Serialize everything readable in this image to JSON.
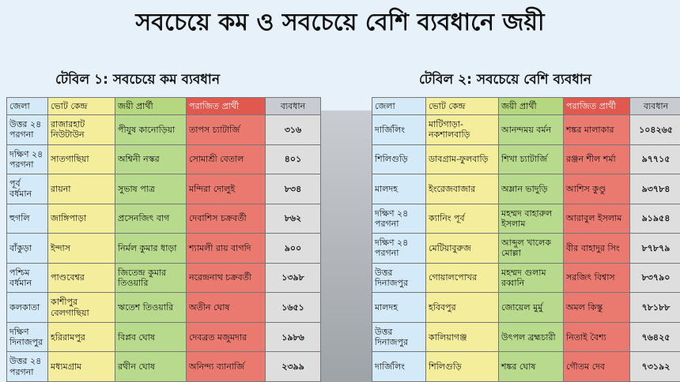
{
  "title": "সবচেয়ে কম ও সবচেয়ে বেশি ব্যবধানে জয়ী",
  "table1": {
    "heading": "টেবিল ১: সবচেয়ে কম ব্যবধান",
    "columns": [
      "জেলা",
      "ভোট কেন্দ্র",
      "জয়ী প্রার্থী",
      "পরাজিত প্রার্থী",
      "ব্যবধান"
    ],
    "rows": [
      [
        "উত্তর ২৪ পরগনা",
        "রাজারহাট নিউটাউন",
        "পীযুষ কানোড়িয়া",
        "তাপস চ্যাটার্জি",
        "৩১৬"
      ],
      [
        "দক্ষিণ ২৪ পরগনা",
        "সাতগাছিয়া",
        "অশ্বিনী নস্কর",
        "সোমাশ্রী বেতাল",
        "৪০১"
      ],
      [
        "পূর্ব বর্ধমান",
        "রায়না",
        "সুভাষ পাত্র",
        "মন্দিরা দোলুই",
        "৮৩৪"
      ],
      [
        "হুগলি",
        "জাঙ্গিপাড়া",
        "প্রসেনজিৎ বাগ",
        "দেবাশিস চক্রবর্তী",
        "৮৬২"
      ],
      [
        "বাঁকুড়া",
        "ইন্দাস",
        "নির্মল কুমার ধাড়া",
        "শ্যামলী রায় বাগদি",
        "৯০০"
      ],
      [
        "পশ্চিম বর্ধমান",
        "পাণ্ডবেশ্বর",
        "জিতেন্দ্র কুমার তিওয়ারি",
        "নরেন্দ্রনাথ চক্রবর্তী",
        "১৩৯৮"
      ],
      [
        "কলকাতা",
        "কাশীপুর বেলগাছিয়া",
        "ঋতেশ তিওয়ারি",
        "অতীন ঘোষ",
        "১৬৫১"
      ],
      [
        "দক্ষিণ দিনাজপুর",
        "হরিরামপুর",
        "বিপ্লব ঘোষ",
        "দেবব্রত মজুমদার",
        "১৯৮৬"
      ],
      [
        "উত্তর ২৪ পরগনা",
        "মধ্যমগ্রাম",
        "রথীন ঘোষ",
        "অনিন্দ্য ব্যানার্জি",
        "২৩৯৯"
      ]
    ]
  },
  "table2": {
    "heading": "টেবিল ২: সবচেয়ে বেশি ব্যবধান",
    "columns": [
      "জেলা",
      "ভোট কেন্দ্র",
      "জয়ী প্রার্থী",
      "পরাজিত প্রার্থী",
      "ব্যবধান"
    ],
    "rows": [
      [
        "দার্জিলিং",
        "মাটিগাড়া-নকশালবাড়ি",
        "আনন্দময় বর্মন",
        "শঙ্কর মালাকার",
        "১০৪২৬৫"
      ],
      [
        "শিলিগুড়ি",
        "ডাবগ্রাম-ফুলবাড়ি",
        "শিখা চ্যাটার্জি",
        "রঞ্জন শীল শর্মা",
        "৯৭৭১৫"
      ],
      [
        "মালদহ",
        "ইংরেজবাজার",
        "অম্লান ভাদুড়ি",
        "আশিস কুণ্ডু",
        "৯৩৭৮৪"
      ],
      [
        "দক্ষিণ ২৪ পরগনা",
        "ক্যানিং পূর্ব",
        "মহম্মদ বাহারুল ইসলাম",
        "আরাবুল ইসলাম",
        "৯১৯৫৪"
      ],
      [
        "দক্ষিণ ২৪ পরগনা",
        "মেটিয়াবুরুজ",
        "আব্দুল খালেক মোল্লা",
        "বীর বাহাদুর সিং",
        "৮৭৮৭৯"
      ],
      [
        "উত্তর দিনাজপুর",
        "গোয়ালপোখর",
        "মহম্মদ গুলাম রব্বানি",
        "সরজিৎ বিশ্বাস",
        "৮৩৭৯০"
      ],
      [
        "মালদহ",
        "হবিবপুর",
        "জোয়েল মুর্মু",
        "অমল কিস্কু",
        "৭৮১৮৮"
      ],
      [
        "উত্তর দিনাজপুর",
        "কালিয়াগঞ্জ",
        "উৎপল ব্রহ্মচারী",
        "নিতাই বৈশ্য",
        "৭৬৪২৫"
      ],
      [
        "দার্জিলিং",
        "শিলিগুড়ি",
        "শঙ্কর ঘোষ",
        "গৌতম দেব",
        "৭৩১৯২"
      ]
    ]
  }
}
